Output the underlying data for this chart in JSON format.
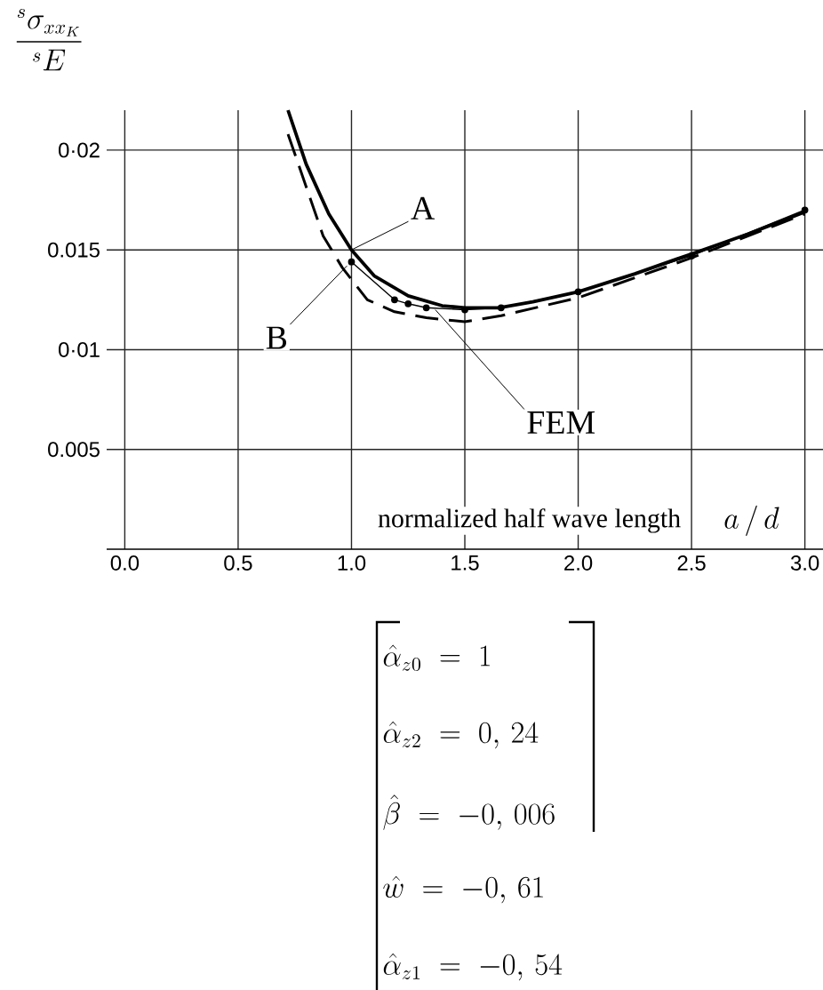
{
  "chart_data": {
    "type": "line",
    "xlabel": "normalized half wave length",
    "ylabel": "\\frac{{}^{s}\\sigma_{xx_K}}{{}^{s}E}",
    "xlim": [
      -0.08,
      3.08
    ],
    "ylim": [
      0,
      0.022
    ],
    "xticks": [
      {
        "value": 0,
        "label": "0.0"
      },
      0.5,
      {
        "value": 1,
        "label": "1.0"
      },
      1.5,
      {
        "value": 2,
        "label": "2.0"
      },
      2.5,
      {
        "value": 3,
        "label": "3.0"
      }
    ],
    "yticks": [
      0.005,
      {
        "value": 0.01,
        "label": "0·01"
      },
      0.015,
      {
        "value": 0.02,
        "label": "0·02"
      }
    ],
    "grid": true,
    "series": [
      {
        "color": "#000000",
        "line_style": "solid",
        "marker": "none",
        "x": [
          0.72,
          0.8,
          0.9,
          1.0,
          1.1,
          1.25,
          1.4,
          1.5,
          1.65,
          1.8,
          2.0,
          2.25,
          2.5,
          2.75,
          3.0
        ],
        "values": [
          0.022,
          0.0193,
          0.0168,
          0.015,
          0.0137,
          0.0127,
          0.0122,
          0.0121,
          0.0121,
          0.0124,
          0.0129,
          0.0138,
          0.0148,
          0.0158,
          0.0169
        ]
      },
      {
        "color": "#000000",
        "line_style": "dashed",
        "marker": "none",
        "x": [
          0.72,
          0.875,
          0.96,
          1.07,
          1.19,
          1.33,
          1.5,
          1.66,
          2.0,
          2.5,
          3.0
        ],
        "values": [
          0.0208,
          0.0157,
          0.0141,
          0.0125,
          0.0119,
          0.0116,
          0.0114,
          0.0117,
          0.0126,
          0.0146,
          0.0168
        ]
      },
      {
        "color": "#000000",
        "line_style": "solid",
        "marker": "circle",
        "x": [
          1.0,
          1.19,
          1.25,
          1.33,
          1.5,
          1.66,
          2.0,
          2.5,
          3.0
        ],
        "values": [
          0.0144,
          0.0125,
          0.0123,
          0.0121,
          0.012,
          0.0121,
          0.0129,
          0.0147,
          0.017
        ]
      }
    ],
    "annotations": [
      {
        "text": "A",
        "x": 1.0,
        "y": 0.015
      },
      {
        "text": "B",
        "x": 0.98,
        "y": 0.0142
      },
      {
        "text": "FEM",
        "x": 1.37,
        "y": 0.012
      },
      "a\\,/\\,d",
      "\\hat{\\alpha}_{z0}\\;=\\;1",
      "\\hat{\\alpha}_{z2}\\;=\\;0,\\,24",
      "\\hat{\\beta}\\;=\\;-0,\\,006",
      "\\hat{w}\\;=\\;-0,\\,61",
      "\\hat{\\alpha}_{z1}\\;=\\;-0,\\,54"
    ]
  }
}
